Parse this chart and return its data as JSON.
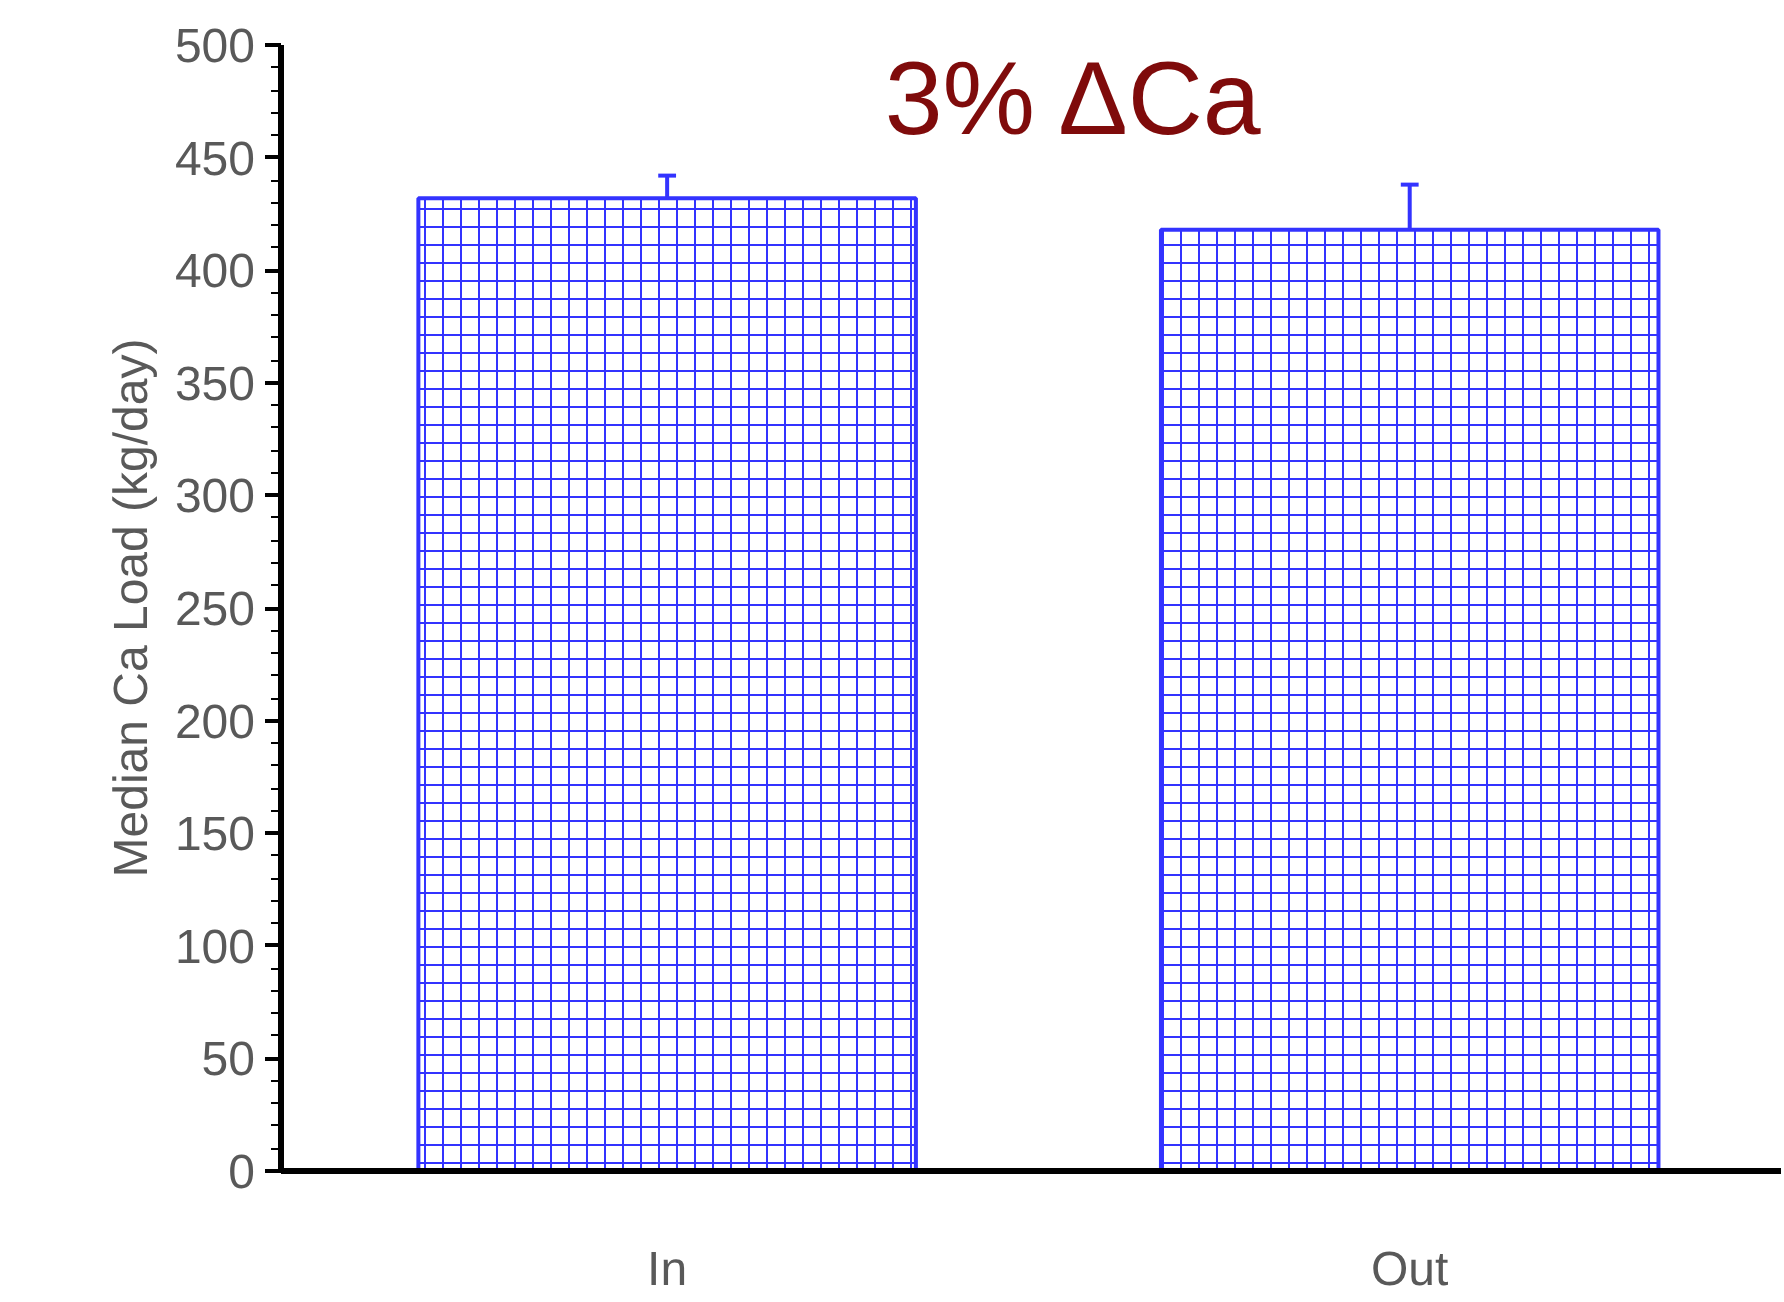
{
  "chart_data": {
    "type": "bar",
    "title": "3% ΔCa",
    "ylabel": "Median Ca Load (kg/day)",
    "categories": [
      "In",
      "Out"
    ],
    "series": [
      {
        "color": "#3333ff",
        "values": [
          432,
          418
        ],
        "errors": [
          [
            432,
            442
          ],
          [
            418,
            438
          ]
        ]
      }
    ],
    "ylim": [
      0,
      500
    ],
    "yticks": [
      0,
      50,
      100,
      150,
      200,
      250,
      300,
      350,
      400,
      450,
      500
    ],
    "grid": false
  }
}
